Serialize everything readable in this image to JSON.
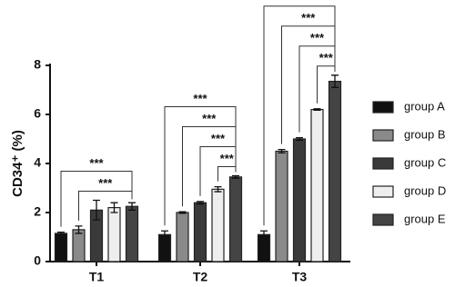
{
  "chart_data": {
    "type": "bar",
    "y_label": "CD34⁺ (%)",
    "categories": [
      "T1",
      "T2",
      "T3"
    ],
    "series": [
      {
        "name": "group A",
        "color": "#111111",
        "values": [
          1.15,
          1.1,
          1.1
        ],
        "errors": [
          0.05,
          0.15,
          0.15
        ]
      },
      {
        "name": "group B",
        "color": "#8a8a8a",
        "values": [
          1.3,
          2.0,
          4.5
        ],
        "errors": [
          0.15,
          0.03,
          0.07
        ]
      },
      {
        "name": "group C",
        "color": "#3a3a3a",
        "values": [
          2.1,
          2.4,
          5.0
        ],
        "errors": [
          0.4,
          0.05,
          0.05
        ]
      },
      {
        "name": "group D",
        "color": "#eeeeee",
        "values": [
          2.2,
          2.95,
          6.2
        ],
        "errors": [
          0.2,
          0.1,
          0.03
        ]
      },
      {
        "name": "group E",
        "color": "#444444",
        "values": [
          2.25,
          3.45,
          7.35
        ],
        "errors": [
          0.15,
          0.05,
          0.25
        ]
      }
    ],
    "ylim": [
      0,
      8
    ],
    "yticks": [
      0,
      2,
      4,
      6,
      8
    ],
    "significance": [
      {
        "category": 0,
        "from": 0,
        "to": 4,
        "label": "***"
      },
      {
        "category": 0,
        "from": 1,
        "to": 4,
        "label": "***"
      },
      {
        "category": 1,
        "from": 0,
        "to": 4,
        "label": "***"
      },
      {
        "category": 1,
        "from": 1,
        "to": 4,
        "label": "***"
      },
      {
        "category": 1,
        "from": 2,
        "to": 4,
        "label": "***"
      },
      {
        "category": 1,
        "from": 3,
        "to": 4,
        "label": "***"
      },
      {
        "category": 2,
        "from": 0,
        "to": 4,
        "label": "***"
      },
      {
        "category": 2,
        "from": 1,
        "to": 4,
        "label": "***"
      },
      {
        "category": 2,
        "from": 2,
        "to": 4,
        "label": "***"
      },
      {
        "category": 2,
        "from": 3,
        "to": 4,
        "label": "***"
      }
    ]
  }
}
